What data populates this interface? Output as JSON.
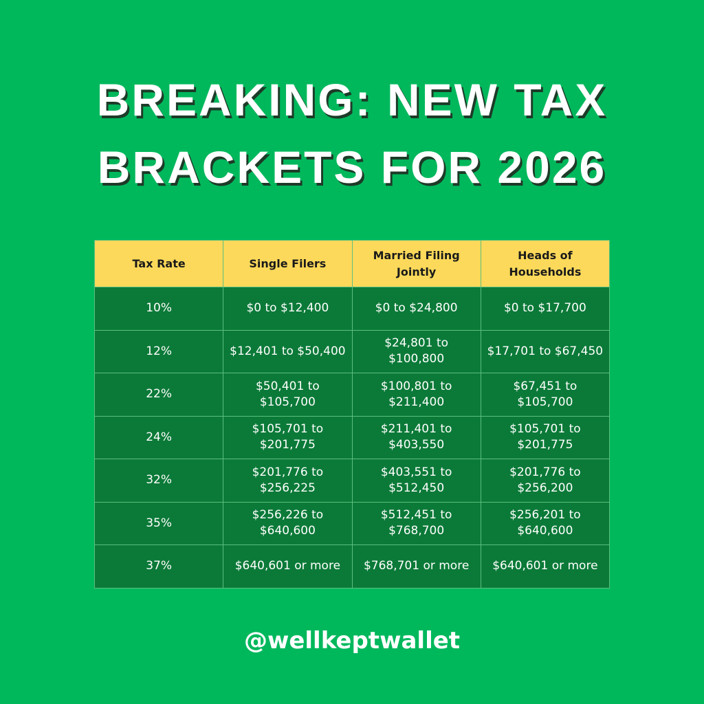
{
  "header": {
    "title_lines": [
      "BREAKING: NEW TAX",
      "BRACKETS FOR 2026"
    ]
  },
  "table": {
    "columns": [
      "Tax Rate",
      "Single Filers",
      "Married Filing Jointly",
      "Heads of Households"
    ],
    "rows": [
      [
        "10%",
        "$0 to $12,400",
        "$0 to $24,800",
        "$0 to $17,700"
      ],
      [
        "12%",
        "$12,401 to $50,400",
        "$24,801 to $100,800",
        "$17,701 to $67,450"
      ],
      [
        "22%",
        "$50,401 to $105,700",
        "$100,801 to $211,400",
        "$67,451 to $105,700"
      ],
      [
        "24%",
        "$105,701 to $201,775",
        "$211,401 to $403,550",
        "$105,701 to $201,775"
      ],
      [
        "32%",
        "$201,776 to $256,225",
        "$403,551 to $512,450",
        "$201,776 to $256,200"
      ],
      [
        "35%",
        "$256,226 to $640,600",
        "$512,451 to $768,700",
        "$256,201 to $640,600"
      ],
      [
        "37%",
        "$640,601 or more",
        "$768,701 or more",
        "$640,601 or more"
      ]
    ]
  },
  "footer": {
    "handle": "@wellkeptwallet"
  }
}
